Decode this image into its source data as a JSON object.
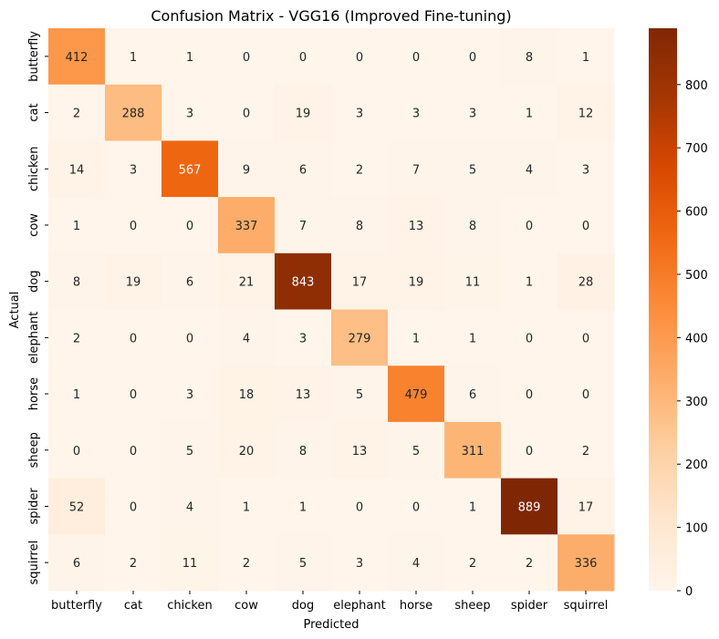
{
  "chart_data": {
    "type": "heatmap",
    "title": "Confusion Matrix - VGG16 (Improved Fine-tuning)",
    "xlabel": "Predicted",
    "ylabel": "Actual",
    "x_categories": [
      "butterfly",
      "cat",
      "chicken",
      "cow",
      "dog",
      "elephant",
      "horse",
      "sheep",
      "spider",
      "squirrel"
    ],
    "y_categories": [
      "butterfly",
      "cat",
      "chicken",
      "cow",
      "dog",
      "elephant",
      "horse",
      "sheep",
      "spider",
      "squirrel"
    ],
    "values": [
      [
        412,
        1,
        1,
        0,
        0,
        0,
        0,
        0,
        8,
        1
      ],
      [
        2,
        288,
        3,
        0,
        19,
        3,
        3,
        3,
        1,
        12
      ],
      [
        14,
        3,
        567,
        9,
        6,
        2,
        7,
        5,
        4,
        3
      ],
      [
        1,
        0,
        0,
        337,
        7,
        8,
        13,
        8,
        0,
        0
      ],
      [
        8,
        19,
        6,
        21,
        843,
        17,
        19,
        11,
        1,
        28
      ],
      [
        2,
        0,
        0,
        4,
        3,
        279,
        1,
        1,
        0,
        0
      ],
      [
        1,
        0,
        3,
        18,
        13,
        5,
        479,
        6,
        0,
        0
      ],
      [
        0,
        0,
        5,
        20,
        8,
        13,
        5,
        311,
        0,
        2
      ],
      [
        52,
        0,
        4,
        1,
        1,
        0,
        0,
        1,
        889,
        17
      ],
      [
        6,
        2,
        11,
        2,
        5,
        3,
        4,
        2,
        2,
        336
      ]
    ],
    "colormap": "Oranges",
    "color_range": [
      0,
      889
    ],
    "colorbar_ticks": [
      0,
      100,
      200,
      300,
      400,
      500,
      600,
      700,
      800
    ],
    "grid": false
  }
}
